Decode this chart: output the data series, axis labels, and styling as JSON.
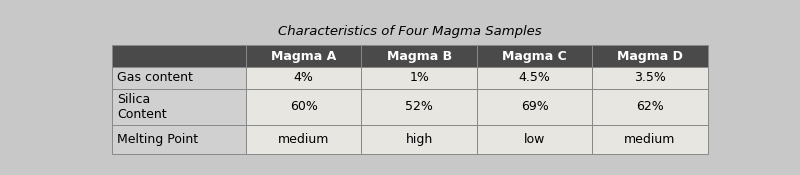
{
  "title": "Characteristics of Four Magma Samples",
  "col_headers": [
    "",
    "Magma A",
    "Magma B",
    "Magma C",
    "Magma D"
  ],
  "rows": [
    [
      "Gas content",
      "4%",
      "1%",
      "4.5%",
      "3.5%"
    ],
    [
      "Silica\nContent",
      "60%",
      "52%",
      "69%",
      "62%"
    ],
    [
      "Melting Point",
      "medium",
      "high",
      "low",
      "medium"
    ]
  ],
  "header_bg": "#4a4a4a",
  "header_fg": "#ffffff",
  "label_col_bg": "#d0d0d0",
  "data_cell_bg": "#e8e6e0",
  "border_color": "#888888",
  "title_fontsize": 9.5,
  "header_fontsize": 9,
  "cell_fontsize": 9,
  "fig_bg": "#c8c8c8",
  "table_bg": "#f0eeea"
}
